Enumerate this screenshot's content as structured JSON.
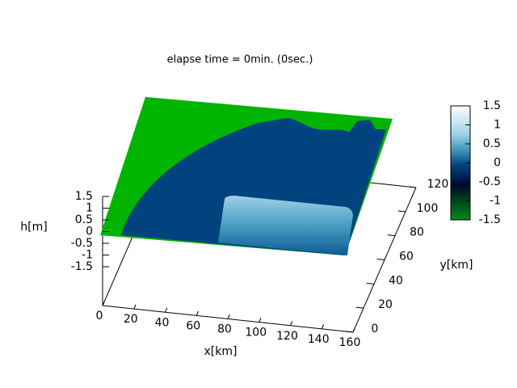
{
  "chart_data": {
    "type": "surface3d",
    "title": "elapse time = 0min. (0sec.)",
    "xlabel": "x[km]",
    "ylabel": "y[km]",
    "zlabel": "h[m]",
    "xlim": [
      0,
      160
    ],
    "xticks": [
      0,
      20,
      40,
      60,
      80,
      100,
      120,
      140,
      160
    ],
    "ylim": [
      0,
      120
    ],
    "yticks": [
      0,
      20,
      40,
      60,
      80,
      100,
      120
    ],
    "zlim": [
      -1.5,
      1.5
    ],
    "zticks": [
      1.5,
      1,
      0.5,
      0,
      -0.5,
      -1,
      -1.5
    ],
    "cblim": [
      -1.5,
      1.5
    ],
    "cbticks": [
      1.5,
      1,
      0.5,
      0,
      -0.5,
      -1,
      -1.5
    ]
  }
}
